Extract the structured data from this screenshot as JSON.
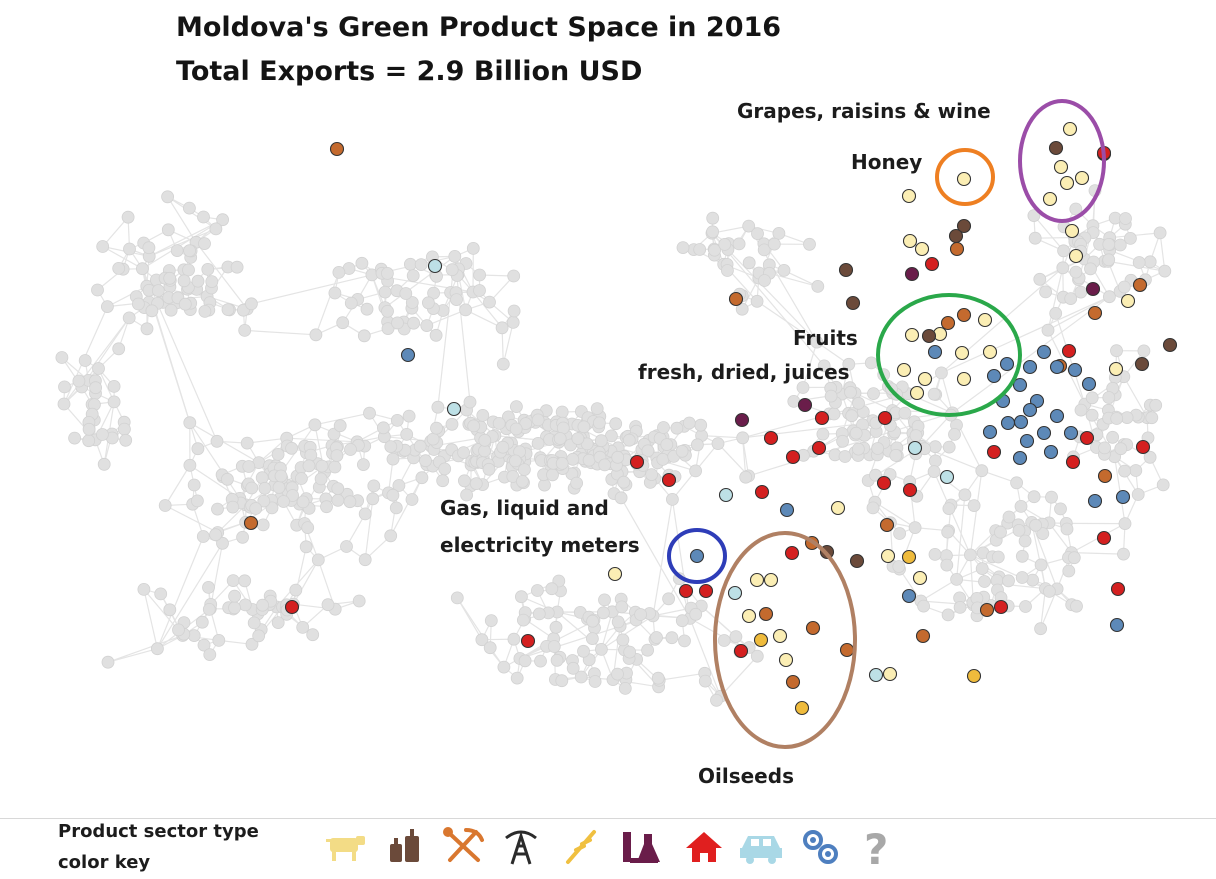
{
  "title_line1": "Moldova's Green Product Space in 2016",
  "title_line2": "Total Exports = 2.9 Billion USD",
  "annotations": {
    "grapes": "Grapes, raisins & wine",
    "honey": "Honey",
    "fruits_line1": "Fruits",
    "fruits_line2": "fresh, dried, juices",
    "meters_line1": "Gas, liquid and",
    "meters_line2": "electricity meters",
    "oilseeds": "Oilseeds"
  },
  "cluster_colors": {
    "grapes": "#9b4da8",
    "honey": "#ee7f22",
    "fruits": "#2aa84a",
    "meters": "#2e3db8",
    "oilseeds": "#b08063"
  },
  "color_key": {
    "label_line1": "Product sector type",
    "label_line2": "color key",
    "sectors": [
      {
        "icon": "cow-icon",
        "color": "#f3dc86"
      },
      {
        "icon": "bottles-icon",
        "color": "#6b4a3a"
      },
      {
        "icon": "shovel-pickaxe-icon",
        "color": "#d9772f"
      },
      {
        "icon": "oil-derrick-icon",
        "color": "#2b2b2b"
      },
      {
        "icon": "wheat-icon",
        "color": "#f0c040"
      },
      {
        "icon": "chemistry-flask-icon",
        "color": "#6a1d4a"
      },
      {
        "icon": "house-icon",
        "color": "#e01f1f"
      },
      {
        "icon": "car-icon",
        "color": "#a9d8e6"
      },
      {
        "icon": "gears-icon",
        "color": "#4e7fbf"
      },
      {
        "icon": "question-mark-icon",
        "color": "#a8a8a8"
      }
    ]
  },
  "node_colors": {
    "light_yellow": "#fbeeb4",
    "brown": "#6b4a3a",
    "orange_brown": "#c46a2e",
    "red": "#d42020",
    "purple": "#6a1d4a",
    "light_blue": "#bde0e6",
    "steel_blue": "#5d89b8",
    "gold": "#efbb3c",
    "grey_network": "#e2e2e2"
  }
}
